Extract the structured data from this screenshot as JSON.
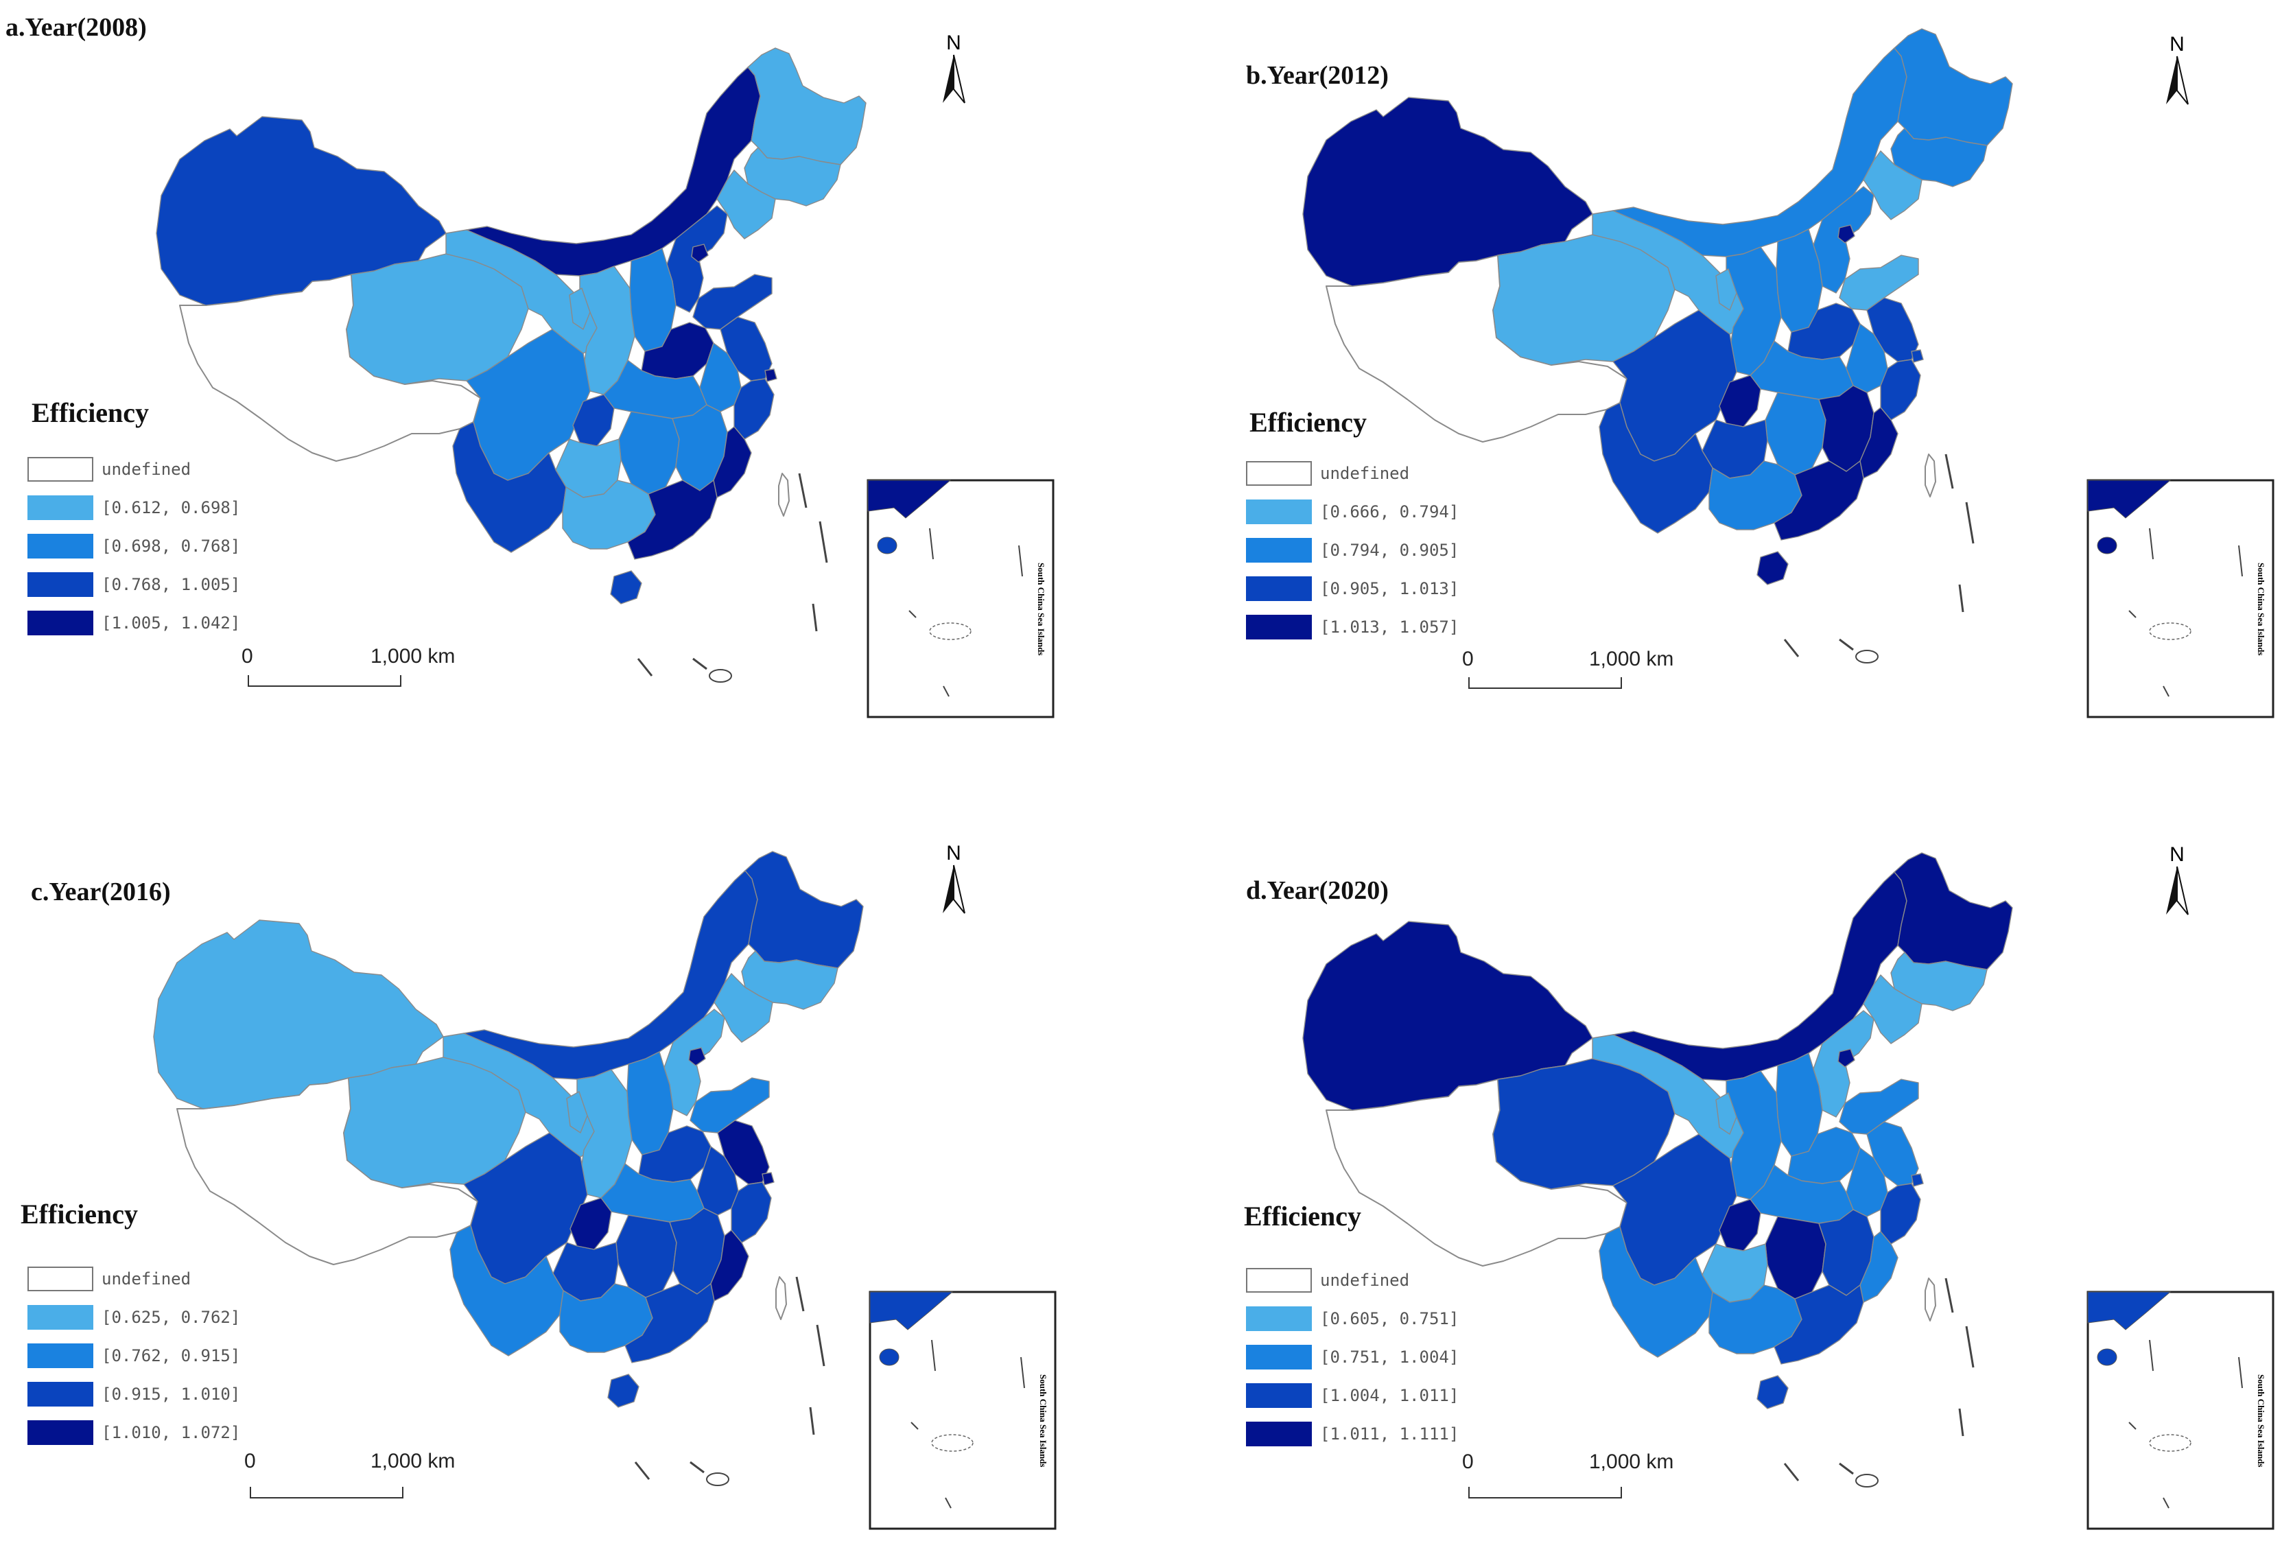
{
  "legend_title": "Efficiency",
  "north_label": "N",
  "scale": {
    "zero": "0",
    "distance": "1,000 km"
  },
  "inset_caption": "South China Sea Islands",
  "undefined_label": "undefined",
  "colors": {
    "undefined": "#ffffff",
    "class1": "#4aaee8",
    "class2": "#1a82e0",
    "class3": "#0a44be",
    "class4": "#02128e",
    "outline": "#8a8a8a"
  },
  "panels": [
    {
      "title": "a.Year(2008)",
      "legend": [
        "[0.612, 0.698]",
        "[0.698, 0.768]",
        "[0.768, 1.005]",
        "[1.005, 1.042]"
      ]
    },
    {
      "title": "b.Year(2012)",
      "legend": [
        "[0.666, 0.794]",
        "[0.794, 0.905]",
        "[0.905, 1.013]",
        "[1.013, 1.057]"
      ]
    },
    {
      "title": "c.Year(2016)",
      "legend": [
        "[0.625, 0.762]",
        "[0.762, 0.915]",
        "[0.915, 1.010]",
        "[1.010, 1.072]"
      ]
    },
    {
      "title": "d.Year(2020)",
      "legend": [
        "[0.605, 0.751]",
        "[0.751, 1.004]",
        "[1.004, 1.011]",
        "[1.011, 1.111]"
      ]
    }
  ]
}
